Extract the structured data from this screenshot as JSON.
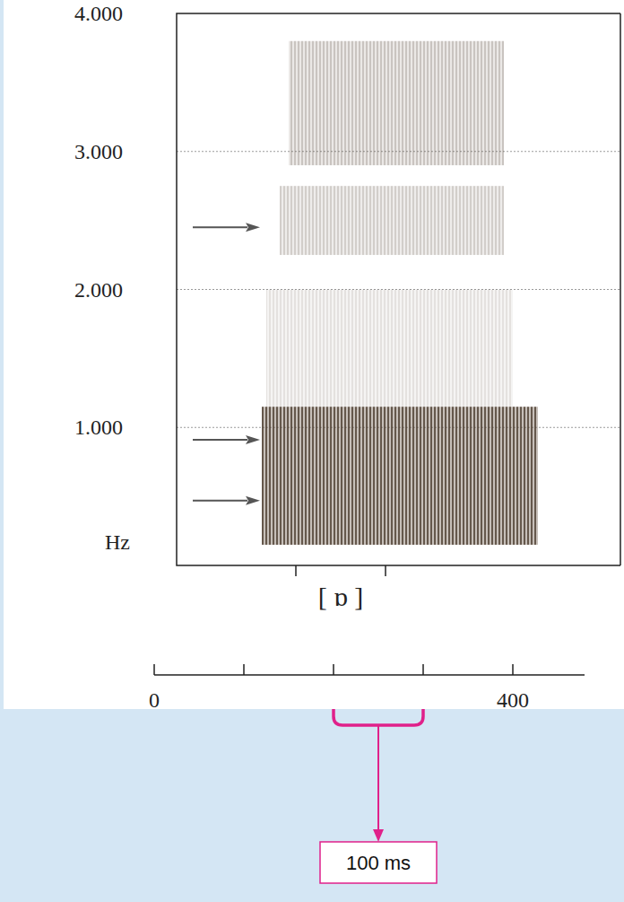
{
  "chart_data": {
    "type": "spectrogram",
    "ylabel": "Hz",
    "ylim": [
      0,
      4000
    ],
    "yticks": [
      {
        "value": 1000,
        "label": "1.000"
      },
      {
        "value": 2000,
        "label": "2.000"
      },
      {
        "value": 3000,
        "label": "3.000"
      },
      {
        "value": 4000,
        "label": "4.000"
      }
    ],
    "grid": true,
    "xlim": [
      0,
      480
    ],
    "xticks": [
      0,
      400
    ],
    "x_minor_ticks": [
      100,
      200,
      300
    ],
    "segment": {
      "label": "[ ɒ ]",
      "start": 158,
      "end": 258
    },
    "formants": [
      470,
      910,
      2450
    ],
    "bands": [
      {
        "low": 150,
        "high": 1150,
        "start": 120,
        "end": 428,
        "level": 0.85
      },
      {
        "low": 1150,
        "high": 2000,
        "start": 125,
        "end": 400,
        "level": 0.15
      },
      {
        "low": 2250,
        "high": 2750,
        "start": 140,
        "end": 390,
        "level": 0.25
      },
      {
        "low": 2900,
        "high": 3800,
        "start": 150,
        "end": 390,
        "level": 0.3
      }
    ],
    "annotation": {
      "text": "100 ms",
      "start": 200,
      "end": 300
    }
  }
}
